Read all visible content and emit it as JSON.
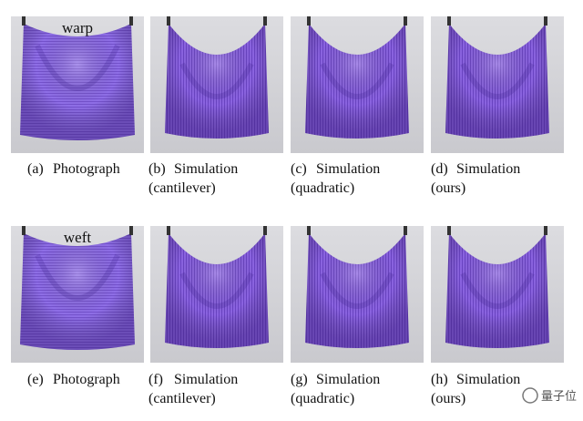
{
  "panels": [
    {
      "label": "(a)",
      "title": "Photograph",
      "overlay": "warp"
    },
    {
      "label": "(b)",
      "title": "Simulation",
      "subtitle": "(cantilever)"
    },
    {
      "label": "(c)",
      "title": "Simulation",
      "subtitle": "(quadratic)"
    },
    {
      "label": "(d)",
      "title": "Simulation",
      "subtitle": "(ours)"
    },
    {
      "label": "(e)",
      "title": "Photograph",
      "overlay": "weft"
    },
    {
      "label": "(f)",
      "title": "Simulation",
      "subtitle": "(cantilever)"
    },
    {
      "label": "(g)",
      "title": "Simulation",
      "subtitle": "(quadratic)"
    },
    {
      "label": "(h)",
      "title": "Simulation",
      "subtitle": "(ours)"
    }
  ],
  "watermark": "量子位"
}
